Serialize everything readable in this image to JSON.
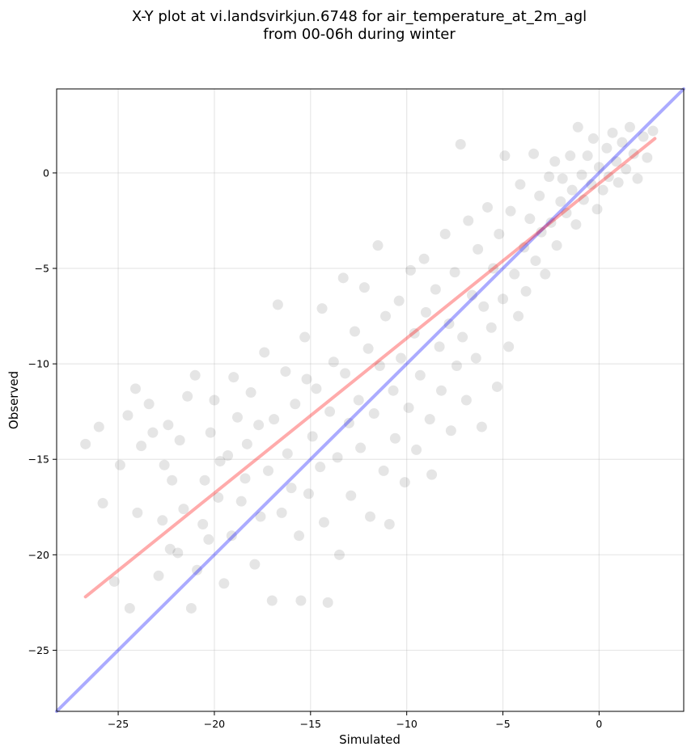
{
  "chart_data": {
    "type": "scatter",
    "title": "X-Y plot at vi.landsvirkjun.6748 for air_temperature_at_2m_agl",
    "subtitle": "from 00-06h during winter",
    "xlabel": "Simulated",
    "ylabel": "Observed",
    "xlim": [
      -28.2,
      4.4
    ],
    "ylim": [
      -28.2,
      4.4
    ],
    "x_ticks": [
      -25,
      -20,
      -15,
      -10,
      -5,
      0
    ],
    "y_ticks": [
      -25,
      -20,
      -15,
      -10,
      -5,
      0
    ],
    "x_tick_labels": [
      "−25",
      "−20",
      "−15",
      "−10",
      "−5",
      "0"
    ],
    "y_tick_labels": [
      "−25",
      "−20",
      "−15",
      "−10",
      "−5",
      "0"
    ],
    "grid": true,
    "point_color": "#000000",
    "point_alpha": 0.1,
    "lines": [
      {
        "role": "identity",
        "color": "#0000ff",
        "alpha": 0.33,
        "x": [
          -28.2,
          4.4
        ],
        "y": [
          -28.2,
          4.4
        ]
      },
      {
        "role": "regression",
        "color": "#ff0000",
        "alpha": 0.33,
        "x": [
          -26.7,
          2.9
        ],
        "y": [
          -22.2,
          1.8
        ]
      }
    ],
    "points": [
      [
        -26.7,
        -14.2
      ],
      [
        -26.0,
        -13.3
      ],
      [
        -25.8,
        -17.3
      ],
      [
        -25.2,
        -21.4
      ],
      [
        -24.9,
        -15.3
      ],
      [
        -24.4,
        -22.8
      ],
      [
        -24.5,
        -12.7
      ],
      [
        -24.1,
        -11.3
      ],
      [
        -24.0,
        -17.8
      ],
      [
        -23.8,
        -14.3
      ],
      [
        -23.4,
        -12.1
      ],
      [
        -23.2,
        -13.6
      ],
      [
        -22.9,
        -21.1
      ],
      [
        -22.7,
        -18.2
      ],
      [
        -22.6,
        -15.3
      ],
      [
        -22.4,
        -13.2
      ],
      [
        -22.3,
        -19.7
      ],
      [
        -22.2,
        -16.1
      ],
      [
        -21.9,
        -19.9
      ],
      [
        -21.8,
        -14.0
      ],
      [
        -21.6,
        -17.6
      ],
      [
        -21.4,
        -11.7
      ],
      [
        -21.2,
        -22.8
      ],
      [
        -21.0,
        -10.6
      ],
      [
        -20.9,
        -20.8
      ],
      [
        -20.6,
        -18.4
      ],
      [
        -20.5,
        -16.1
      ],
      [
        -20.3,
        -19.2
      ],
      [
        -20.2,
        -13.6
      ],
      [
        -20.0,
        -11.9
      ],
      [
        -19.8,
        -17.0
      ],
      [
        -19.7,
        -15.1
      ],
      [
        -19.5,
        -21.5
      ],
      [
        -19.3,
        -14.8
      ],
      [
        -19.1,
        -19.0
      ],
      [
        -19.0,
        -10.7
      ],
      [
        -18.8,
        -12.8
      ],
      [
        -18.6,
        -17.2
      ],
      [
        -18.4,
        -16.0
      ],
      [
        -18.3,
        -14.2
      ],
      [
        -18.1,
        -11.5
      ],
      [
        -17.9,
        -20.5
      ],
      [
        -17.7,
        -13.2
      ],
      [
        -17.6,
        -18.0
      ],
      [
        -17.4,
        -9.4
      ],
      [
        -17.2,
        -15.6
      ],
      [
        -17.0,
        -22.4
      ],
      [
        -16.9,
        -12.9
      ],
      [
        -16.7,
        -6.9
      ],
      [
        -16.5,
        -17.8
      ],
      [
        -16.3,
        -10.4
      ],
      [
        -16.2,
        -14.7
      ],
      [
        -16.0,
        -16.5
      ],
      [
        -15.8,
        -12.1
      ],
      [
        -15.6,
        -19.0
      ],
      [
        -15.5,
        -22.4
      ],
      [
        -15.3,
        -8.6
      ],
      [
        -15.2,
        -10.8
      ],
      [
        -15.1,
        -16.8
      ],
      [
        -14.9,
        -13.8
      ],
      [
        -14.7,
        -11.3
      ],
      [
        -14.5,
        -15.4
      ],
      [
        -14.4,
        -7.1
      ],
      [
        -14.3,
        -18.3
      ],
      [
        -14.1,
        -22.5
      ],
      [
        -14.0,
        -12.5
      ],
      [
        -13.8,
        -9.9
      ],
      [
        -13.6,
        -14.9
      ],
      [
        -13.5,
        -20.0
      ],
      [
        -13.3,
        -5.5
      ],
      [
        -13.2,
        -10.5
      ],
      [
        -13.0,
        -13.1
      ],
      [
        -12.9,
        -16.9
      ],
      [
        -12.7,
        -8.3
      ],
      [
        -12.5,
        -11.9
      ],
      [
        -12.4,
        -14.4
      ],
      [
        -12.2,
        -6.0
      ],
      [
        -12.0,
        -9.2
      ],
      [
        -11.9,
        -18.0
      ],
      [
        -11.7,
        -12.6
      ],
      [
        -11.5,
        -3.8
      ],
      [
        -11.4,
        -10.1
      ],
      [
        -11.2,
        -15.6
      ],
      [
        -11.1,
        -7.5
      ],
      [
        -10.9,
        -18.4
      ],
      [
        -10.7,
        -11.4
      ],
      [
        -10.6,
        -13.9
      ],
      [
        -10.4,
        -6.7
      ],
      [
        -10.3,
        -9.7
      ],
      [
        -10.1,
        -16.2
      ],
      [
        -9.9,
        -12.3
      ],
      [
        -9.8,
        -5.1
      ],
      [
        -9.6,
        -8.4
      ],
      [
        -9.5,
        -14.5
      ],
      [
        -9.3,
        -10.6
      ],
      [
        -9.1,
        -4.5
      ],
      [
        -9.0,
        -7.3
      ],
      [
        -8.8,
        -12.9
      ],
      [
        -8.7,
        -15.8
      ],
      [
        -8.5,
        -6.1
      ],
      [
        -8.3,
        -9.1
      ],
      [
        -8.2,
        -11.4
      ],
      [
        -8.0,
        -3.2
      ],
      [
        -7.8,
        -7.9
      ],
      [
        -7.7,
        -13.5
      ],
      [
        -7.5,
        -5.2
      ],
      [
        -7.4,
        -10.1
      ],
      [
        -7.2,
        1.5
      ],
      [
        -7.1,
        -8.6
      ],
      [
        -6.9,
        -11.9
      ],
      [
        -6.8,
        -2.5
      ],
      [
        -6.6,
        -6.4
      ],
      [
        -6.4,
        -9.7
      ],
      [
        -6.3,
        -4.0
      ],
      [
        -6.1,
        -13.3
      ],
      [
        -6.0,
        -7.0
      ],
      [
        -5.8,
        -1.8
      ],
      [
        -5.6,
        -8.1
      ],
      [
        -5.5,
        -5.0
      ],
      [
        -5.3,
        -11.2
      ],
      [
        -5.2,
        -3.2
      ],
      [
        -5.0,
        -6.6
      ],
      [
        -4.9,
        0.9
      ],
      [
        -4.7,
        -9.1
      ],
      [
        -4.6,
        -2.0
      ],
      [
        -4.4,
        -5.3
      ],
      [
        -4.2,
        -7.5
      ],
      [
        -4.1,
        -0.6
      ],
      [
        -3.9,
        -3.9
      ],
      [
        -3.8,
        -6.2
      ],
      [
        -3.6,
        -2.4
      ],
      [
        -3.4,
        1.0
      ],
      [
        -3.3,
        -4.6
      ],
      [
        -3.1,
        -1.2
      ],
      [
        -3.0,
        -3.1
      ],
      [
        -2.8,
        -5.3
      ],
      [
        -2.6,
        -0.2
      ],
      [
        -2.5,
        -2.6
      ],
      [
        -2.3,
        0.6
      ],
      [
        -2.2,
        -3.8
      ],
      [
        -2.0,
        -1.5
      ],
      [
        -1.9,
        -0.3
      ],
      [
        -1.7,
        -2.1
      ],
      [
        -1.5,
        0.9
      ],
      [
        -1.4,
        -0.9
      ],
      [
        -1.2,
        -2.7
      ],
      [
        -1.1,
        2.4
      ],
      [
        -0.9,
        -0.1
      ],
      [
        -0.8,
        -1.4
      ],
      [
        -0.6,
        0.9
      ],
      [
        -0.4,
        -0.6
      ],
      [
        -0.3,
        1.8
      ],
      [
        -0.1,
        -1.9
      ],
      [
        0.0,
        0.3
      ],
      [
        0.2,
        -0.9
      ],
      [
        0.4,
        1.3
      ],
      [
        0.5,
        -0.2
      ],
      [
        0.7,
        2.1
      ],
      [
        0.9,
        0.6
      ],
      [
        1.0,
        -0.5
      ],
      [
        1.2,
        1.6
      ],
      [
        1.4,
        0.2
      ],
      [
        1.6,
        2.4
      ],
      [
        1.8,
        1.0
      ],
      [
        2.0,
        -0.3
      ],
      [
        2.3,
        1.9
      ],
      [
        2.5,
        0.8
      ],
      [
        2.8,
        2.2
      ]
    ]
  }
}
